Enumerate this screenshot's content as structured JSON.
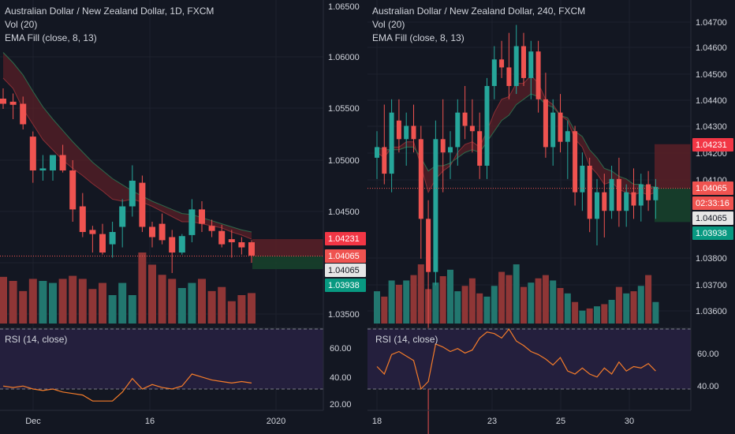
{
  "colors": {
    "up": "#26a69a",
    "down": "#ef5350",
    "bg": "#131722",
    "grid": "#1e222d",
    "text": "#d1d4dc",
    "rsi": "#f57c2a",
    "rsiBand": "#241f3d",
    "upVol": "#22776f",
    "downVol": "#8f3636",
    "emaUp": "#1e5c3a",
    "emaDown": "#5c1f27",
    "tagRed": "#f23645",
    "tagGreen": "#089981",
    "tagLightRed": "#ef5350",
    "tagWhite": "#e6e6e6"
  },
  "left": {
    "title": "Australian Dollar / New Zealand Dollar, 1D, FXCM",
    "vol_label": "Vol (20)",
    "ema_label": "EMA Fill (close, 8, 13)",
    "rsi_label": "RSI (14, close)",
    "price_axis": [
      "1.06500",
      "1.06000",
      "1.05500",
      "1.05000",
      "1.04500",
      "1.03500"
    ],
    "price_tags": {
      "high": "1.04231",
      "cur": "1.04065",
      "cur2": "1.04065",
      "low": "1.03938"
    },
    "rsi_axis": [
      "60.00",
      "40.00",
      "20.00"
    ],
    "time_axis": [
      "Dec",
      "16",
      "2020"
    ],
    "chart_data": {
      "type": "candlestick",
      "candles": [
        {
          "o": 1.056,
          "h": 1.057,
          "l": 1.055,
          "c": 1.0555
        },
        {
          "o": 1.0557,
          "h": 1.0565,
          "l": 1.054,
          "c": 1.0554
        },
        {
          "o": 1.0555,
          "h": 1.0562,
          "l": 1.053,
          "c": 1.0535
        },
        {
          "o": 1.0523,
          "h": 1.0528,
          "l": 1.0478,
          "c": 1.049
        },
        {
          "o": 1.049,
          "h": 1.0505,
          "l": 1.048,
          "c": 1.0492
        },
        {
          "o": 1.049,
          "h": 1.0505,
          "l": 1.048,
          "c": 1.0505
        },
        {
          "o": 1.0505,
          "h": 1.0515,
          "l": 1.0488,
          "c": 1.049
        },
        {
          "o": 1.049,
          "h": 1.05,
          "l": 1.044,
          "c": 1.0452
        },
        {
          "o": 1.0455,
          "h": 1.0468,
          "l": 1.0425,
          "c": 1.043
        },
        {
          "o": 1.0432,
          "h": 1.0436,
          "l": 1.041,
          "c": 1.0428
        },
        {
          "o": 1.0428,
          "h": 1.0438,
          "l": 1.0408,
          "c": 1.041
        },
        {
          "o": 1.0418,
          "h": 1.044,
          "l": 1.0405,
          "c": 1.043
        },
        {
          "o": 1.0435,
          "h": 1.0462,
          "l": 1.0415,
          "c": 1.0455
        },
        {
          "o": 1.0455,
          "h": 1.0495,
          "l": 1.0445,
          "c": 1.048
        },
        {
          "o": 1.0478,
          "h": 1.0485,
          "l": 1.043,
          "c": 1.0435
        },
        {
          "o": 1.0435,
          "h": 1.044,
          "l": 1.0415,
          "c": 1.0425
        },
        {
          "o": 1.0438,
          "h": 1.0448,
          "l": 1.0418,
          "c": 1.0422
        },
        {
          "o": 1.0425,
          "h": 1.0432,
          "l": 1.039,
          "c": 1.041
        },
        {
          "o": 1.041,
          "h": 1.0428,
          "l": 1.0408,
          "c": 1.0426
        },
        {
          "o": 1.0427,
          "h": 1.0462,
          "l": 1.042,
          "c": 1.0452
        },
        {
          "o": 1.0452,
          "h": 1.046,
          "l": 1.043,
          "c": 1.0438
        },
        {
          "o": 1.0436,
          "h": 1.0442,
          "l": 1.0425,
          "c": 1.0431
        },
        {
          "o": 1.0431,
          "h": 1.0437,
          "l": 1.0415,
          "c": 1.0418
        },
        {
          "o": 1.0423,
          "h": 1.0432,
          "l": 1.0405,
          "c": 1.042
        },
        {
          "o": 1.042,
          "h": 1.0425,
          "l": 1.0408,
          "c": 1.0415
        },
        {
          "o": 1.042,
          "h": 1.0422,
          "l": 1.04,
          "c": 1.0407
        }
      ],
      "volume": [
        46,
        42,
        32,
        44,
        42,
        40,
        44,
        47,
        44,
        34,
        40,
        28,
        40,
        28,
        70,
        58,
        48,
        44,
        35,
        40,
        44,
        32,
        36,
        22,
        28,
        30
      ],
      "rsi": [
        32,
        31,
        32,
        30,
        29,
        30,
        28,
        27,
        26,
        22,
        22,
        22,
        28,
        37,
        30,
        33,
        31,
        30,
        32,
        40,
        38,
        36,
        35,
        34,
        35,
        34
      ],
      "ema_fast": [
        1.058,
        1.057,
        1.055,
        1.0535,
        1.052,
        1.051,
        1.05,
        1.0492,
        1.0485,
        1.0477,
        1.047,
        1.0462,
        1.046,
        1.0462,
        1.0459,
        1.0455,
        1.045,
        1.0445,
        1.044,
        1.044,
        1.0438,
        1.0436,
        1.0434,
        1.043,
        1.0427,
        1.0423
      ],
      "ema_slow": [
        1.0605,
        1.0595,
        1.0583,
        1.0567,
        1.0552,
        1.054,
        1.0529,
        1.0518,
        1.0508,
        1.0498,
        1.049,
        1.0482,
        1.0476,
        1.047,
        1.0465,
        1.046,
        1.0456,
        1.0452,
        1.0448,
        1.0447,
        1.0444,
        1.0441,
        1.0438,
        1.0435,
        1.0432,
        1.043
      ]
    }
  },
  "right": {
    "title": "Australian Dollar / New Zealand Dollar, 240, FXCM",
    "vol_label": "Vol (20)",
    "ema_label": "EMA Fill (close, 8, 13)",
    "rsi_label": "RSI (14, close)",
    "price_axis": [
      "1.04700",
      "1.04600",
      "1.04500",
      "1.04400",
      "1.04300",
      "1.04200",
      "1.04100",
      "1.03800",
      "1.03700",
      "1.03600"
    ],
    "price_tags": {
      "high": "1.04231",
      "cur": "1.04065",
      "countdown": "02:33:16",
      "cur2": "1.04065",
      "low": "1.03938"
    },
    "rsi_axis": [
      "60.00",
      "40.00"
    ],
    "time_axis": [
      "18",
      "23",
      "25",
      "30"
    ],
    "chart_data": {
      "type": "candlestick",
      "candles": [
        {
          "o": 1.0418,
          "h": 1.0428,
          "l": 1.041,
          "c": 1.0422
        },
        {
          "o": 1.0422,
          "h": 1.0438,
          "l": 1.0408,
          "c": 1.0412
        },
        {
          "o": 1.0412,
          "h": 1.044,
          "l": 1.0405,
          "c": 1.0435
        },
        {
          "o": 1.0432,
          "h": 1.044,
          "l": 1.042,
          "c": 1.0425
        },
        {
          "o": 1.0425,
          "h": 1.0435,
          "l": 1.0415,
          "c": 1.043
        },
        {
          "o": 1.043,
          "h": 1.0438,
          "l": 1.042,
          "c": 1.0425
        },
        {
          "o": 1.0425,
          "h": 1.043,
          "l": 1.038,
          "c": 1.0395
        },
        {
          "o": 1.0395,
          "h": 1.0402,
          "l": 1.0305,
          "c": 1.0375
        },
        {
          "o": 1.0375,
          "h": 1.0432,
          "l": 1.037,
          "c": 1.0425
        },
        {
          "o": 1.0425,
          "h": 1.044,
          "l": 1.0405,
          "c": 1.042
        },
        {
          "o": 1.042,
          "h": 1.0428,
          "l": 1.041,
          "c": 1.0422
        },
        {
          "o": 1.0422,
          "h": 1.044,
          "l": 1.0415,
          "c": 1.0435
        },
        {
          "o": 1.0435,
          "h": 1.0445,
          "l": 1.0425,
          "c": 1.043
        },
        {
          "o": 1.043,
          "h": 1.044,
          "l": 1.042,
          "c": 1.0428
        },
        {
          "o": 1.0428,
          "h": 1.0435,
          "l": 1.041,
          "c": 1.0415
        },
        {
          "o": 1.0415,
          "h": 1.0448,
          "l": 1.041,
          "c": 1.0445
        },
        {
          "o": 1.0445,
          "h": 1.046,
          "l": 1.044,
          "c": 1.0455
        },
        {
          "o": 1.0455,
          "h": 1.0462,
          "l": 1.0448,
          "c": 1.0452
        },
        {
          "o": 1.0452,
          "h": 1.0465,
          "l": 1.044,
          "c": 1.0445
        },
        {
          "o": 1.0445,
          "h": 1.0468,
          "l": 1.0442,
          "c": 1.046
        },
        {
          "o": 1.046,
          "h": 1.0465,
          "l": 1.0445,
          "c": 1.0448
        },
        {
          "o": 1.0448,
          "h": 1.0462,
          "l": 1.044,
          "c": 1.0458
        },
        {
          "o": 1.0458,
          "h": 1.0462,
          "l": 1.0435,
          "c": 1.044
        },
        {
          "o": 1.044,
          "h": 1.045,
          "l": 1.0418,
          "c": 1.0422
        },
        {
          "o": 1.0422,
          "h": 1.044,
          "l": 1.0415,
          "c": 1.0435
        },
        {
          "o": 1.0435,
          "h": 1.0442,
          "l": 1.042,
          "c": 1.0424
        },
        {
          "o": 1.0424,
          "h": 1.0432,
          "l": 1.041,
          "c": 1.0428
        },
        {
          "o": 1.0428,
          "h": 1.043,
          "l": 1.04,
          "c": 1.0405
        },
        {
          "o": 1.0405,
          "h": 1.042,
          "l": 1.0398,
          "c": 1.0415
        },
        {
          "o": 1.0415,
          "h": 1.0418,
          "l": 1.039,
          "c": 1.0395
        },
        {
          "o": 1.0395,
          "h": 1.041,
          "l": 1.0385,
          "c": 1.0405
        },
        {
          "o": 1.0405,
          "h": 1.0412,
          "l": 1.0388,
          "c": 1.0398
        },
        {
          "o": 1.0398,
          "h": 1.0415,
          "l": 1.0395,
          "c": 1.041
        },
        {
          "o": 1.041,
          "h": 1.0418,
          "l": 1.0392,
          "c": 1.0398
        },
        {
          "o": 1.0398,
          "h": 1.0408,
          "l": 1.0392,
          "c": 1.0405
        },
        {
          "o": 1.0405,
          "h": 1.0414,
          "l": 1.0395,
          "c": 1.04
        },
        {
          "o": 1.04,
          "h": 1.0412,
          "l": 1.0394,
          "c": 1.0408
        },
        {
          "o": 1.0408,
          "h": 1.0413,
          "l": 1.0398,
          "c": 1.0402
        },
        {
          "o": 1.0402,
          "h": 1.041,
          "l": 1.0395,
          "c": 1.0407
        }
      ],
      "volume": [
        30,
        25,
        40,
        36,
        40,
        45,
        55,
        32,
        38,
        44,
        50,
        30,
        35,
        42,
        28,
        25,
        35,
        48,
        45,
        55,
        34,
        38,
        42,
        45,
        40,
        33,
        28,
        20,
        12,
        14,
        16,
        18,
        22,
        34,
        28,
        30,
        35,
        45,
        20
      ],
      "rsi": [
        45,
        40,
        53,
        55,
        52,
        49,
        30,
        35,
        60,
        58,
        55,
        57,
        54,
        56,
        64,
        68,
        67,
        64,
        70,
        62,
        59,
        55,
        53,
        50,
        46,
        51,
        42,
        40,
        44,
        40,
        38,
        44,
        40,
        48,
        42,
        45,
        44,
        47,
        42
      ],
      "ema_fast": [
        1.042,
        1.0418,
        1.0422,
        1.0422,
        1.0424,
        1.0424,
        1.0415,
        1.0405,
        1.041,
        1.0413,
        1.0415,
        1.042,
        1.0423,
        1.0424,
        1.0422,
        1.0428,
        1.0435,
        1.044,
        1.0441,
        1.0446,
        1.0446,
        1.0449,
        1.0446,
        1.044,
        1.0438,
        1.0434,
        1.0432,
        1.0425,
        1.0422,
        1.0415,
        1.0412,
        1.0408,
        1.0409,
        1.0406,
        1.0405,
        1.0404,
        1.0405,
        1.0404,
        1.0405
      ],
      "ema_slow": [
        1.0422,
        1.0421,
        1.0421,
        1.0421,
        1.0422,
        1.0422,
        1.0418,
        1.0413,
        1.0415,
        1.0415,
        1.0416,
        1.0418,
        1.042,
        1.0421,
        1.042,
        1.0424,
        1.0428,
        1.0432,
        1.0434,
        1.0438,
        1.044,
        1.0442,
        1.0441,
        1.0438,
        1.0437,
        1.0434,
        1.0433,
        1.0428,
        1.0426,
        1.0421,
        1.0418,
        1.0414,
        1.0413,
        1.0411,
        1.041,
        1.0408,
        1.0408,
        1.0407,
        1.0407
      ]
    }
  }
}
